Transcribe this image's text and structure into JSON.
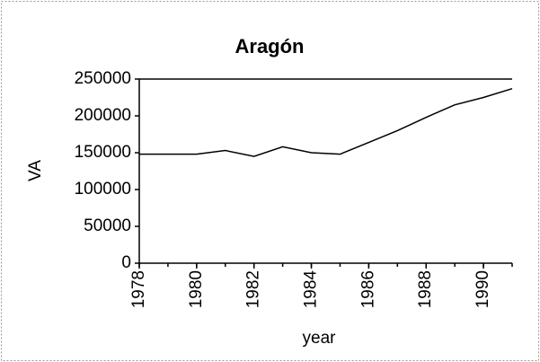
{
  "chart_data": {
    "type": "line",
    "title": "Aragón",
    "x_label": "year",
    "y_label": "VA",
    "x": [
      1978,
      1979,
      1980,
      1981,
      1982,
      1983,
      1984,
      1985,
      1986,
      1987,
      1988,
      1989,
      1990,
      1991
    ],
    "series": [
      {
        "name": "VA",
        "color": "#000000",
        "values": [
          148000,
          148000,
          148000,
          153000,
          145000,
          158000,
          150000,
          148000,
          164000,
          180000,
          198000,
          215000,
          225000,
          237000
        ]
      }
    ],
    "xlim": [
      1978,
      1991
    ],
    "xticks": [
      1978,
      1980,
      1982,
      1984,
      1986,
      1988,
      1990
    ],
    "ylim": [
      0,
      250000
    ],
    "yticks": [
      0,
      50000,
      100000,
      150000,
      200000,
      250000
    ],
    "grid": false
  }
}
